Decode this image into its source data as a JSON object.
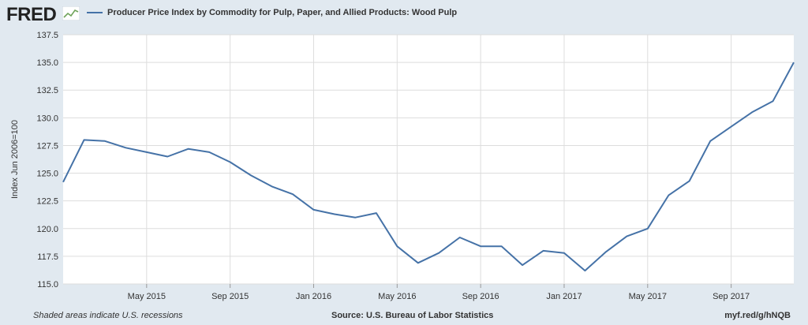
{
  "header": {
    "logo_text": "FRED",
    "legend_label": "Producer Price Index by Commodity for Pulp, Paper, and Allied Products: Wood Pulp"
  },
  "footer": {
    "recessions_note": "Shaded areas indicate U.S. recessions",
    "source": "Source: U.S. Bureau of Labor Statistics",
    "link": "myf.red/g/hNQB"
  },
  "colors": {
    "line": "#4572a7",
    "background": "#e1e9f0",
    "plot_background": "#ffffff",
    "grid": "#dddddd"
  },
  "chart_data": {
    "type": "line",
    "title": "",
    "xlabel": "",
    "ylabel": "Index Jun 2006=100",
    "ylim": [
      115.0,
      137.5
    ],
    "yticks": [
      "115.0",
      "117.5",
      "120.0",
      "122.5",
      "125.0",
      "127.5",
      "130.0",
      "132.5",
      "135.0",
      "137.5"
    ],
    "xticks": [
      {
        "date": "2015-05",
        "label": "May 2015"
      },
      {
        "date": "2015-09",
        "label": "Sep 2015"
      },
      {
        "date": "2016-01",
        "label": "Jan 2016"
      },
      {
        "date": "2016-05",
        "label": "May 2016"
      },
      {
        "date": "2016-09",
        "label": "Sep 2016"
      },
      {
        "date": "2017-01",
        "label": "Jan 2017"
      },
      {
        "date": "2017-05",
        "label": "May 2017"
      },
      {
        "date": "2017-09",
        "label": "Sep 2017"
      }
    ],
    "grid": true,
    "legend_position": "top",
    "series": [
      {
        "name": "Producer Price Index by Commodity for Pulp, Paper, and Allied Products: Wood Pulp",
        "x": [
          "2015-01",
          "2015-02",
          "2015-03",
          "2015-04",
          "2015-05",
          "2015-06",
          "2015-07",
          "2015-08",
          "2015-09",
          "2015-10",
          "2015-11",
          "2015-12",
          "2016-01",
          "2016-02",
          "2016-03",
          "2016-04",
          "2016-05",
          "2016-06",
          "2016-07",
          "2016-08",
          "2016-09",
          "2016-10",
          "2016-11",
          "2016-12",
          "2017-01",
          "2017-02",
          "2017-03",
          "2017-04",
          "2017-05",
          "2017-06",
          "2017-07",
          "2017-08",
          "2017-09",
          "2017-10",
          "2017-11",
          "2017-12"
        ],
        "values": [
          124.2,
          128.0,
          127.9,
          127.3,
          126.9,
          126.5,
          127.2,
          126.9,
          126.0,
          124.8,
          123.8,
          123.1,
          121.7,
          121.3,
          121.0,
          121.4,
          118.4,
          116.9,
          117.8,
          119.2,
          118.4,
          118.4,
          116.7,
          118.0,
          117.8,
          116.2,
          117.9,
          119.3,
          120.0,
          123.0,
          124.3,
          127.9,
          129.2,
          130.5,
          131.5,
          135.0
        ]
      }
    ]
  }
}
